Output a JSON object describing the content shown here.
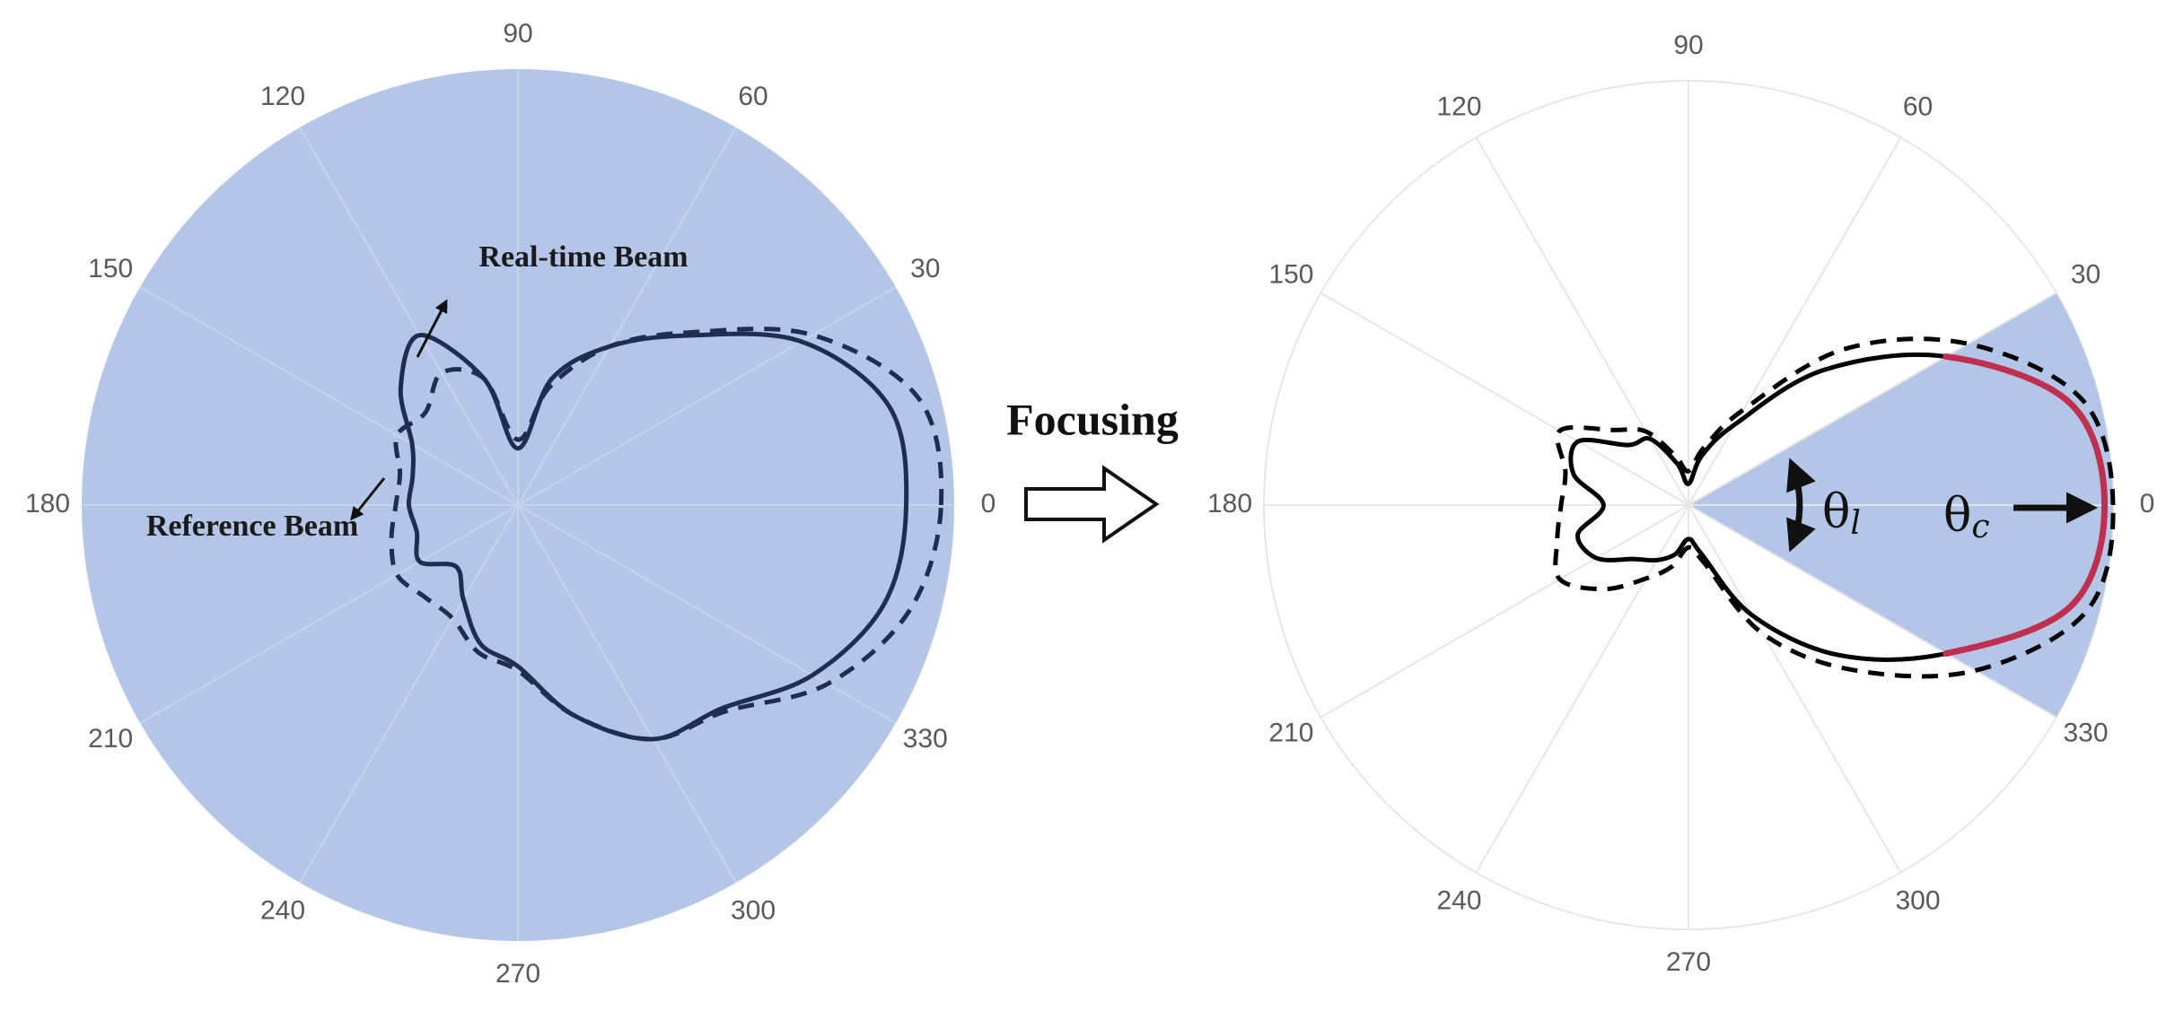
{
  "chart_data": [
    {
      "type": "polar",
      "angles": [
        0,
        15,
        30,
        45,
        60,
        75,
        90,
        105,
        120,
        135,
        150,
        165,
        180,
        195,
        210,
        225,
        240,
        255,
        270,
        285,
        300,
        315,
        330,
        345
      ],
      "rlim": [
        0,
        1
      ],
      "angle_ticks": [
        0,
        30,
        60,
        90,
        120,
        150,
        180,
        210,
        240,
        270,
        300,
        330
      ],
      "background": "#b4c6e7",
      "grid_color": "#c8d4ec",
      "series": [
        {
          "name": "Real-time Beam",
          "color": "#1f2d4e",
          "dashed": false,
          "values": [
            0.89,
            0.88,
            0.75,
            0.55,
            0.42,
            0.3,
            0.13,
            0.3,
            0.45,
            0.38,
            0.28,
            0.25,
            0.25,
            0.24,
            0.26,
            0.2,
            0.25,
            0.33,
            0.37,
            0.5,
            0.62,
            0.66,
            0.78,
            0.87
          ]
        },
        {
          "name": "Reference Beam",
          "color": "#1f2d4e",
          "dashed": true,
          "values": [
            0.97,
            0.95,
            0.78,
            0.56,
            0.42,
            0.28,
            0.15,
            0.3,
            0.35,
            0.3,
            0.32,
            0.28,
            0.28,
            0.3,
            0.32,
            0.3,
            0.3,
            0.35,
            0.38,
            0.5,
            0.62,
            0.67,
            0.82,
            0.93
          ]
        }
      ]
    },
    {
      "type": "polar",
      "angles": [
        0,
        15,
        30,
        45,
        60,
        75,
        90,
        105,
        120,
        135,
        150,
        165,
        180,
        195,
        210,
        225,
        240,
        255,
        270,
        285,
        300,
        315,
        330,
        345
      ],
      "rlim": [
        0,
        1
      ],
      "angle_ticks": [
        0,
        30,
        60,
        90,
        120,
        150,
        180,
        210,
        240,
        270,
        300,
        330
      ],
      "grid_color": "#e6e6e6",
      "highlight_range": [
        330,
        30
      ],
      "highlight_fill": "#b4c6e7",
      "highlight_color": "#c0304e",
      "series": [
        {
          "color": "#000000",
          "dashed": false,
          "values": [
            0.98,
            0.93,
            0.7,
            0.45,
            0.22,
            0.12,
            0.05,
            0.1,
            0.18,
            0.2,
            0.3,
            0.28,
            0.2,
            0.27,
            0.25,
            0.18,
            0.15,
            0.12,
            0.08,
            0.12,
            0.3,
            0.5,
            0.7,
            0.93
          ]
        },
        {
          "color": "#000000",
          "dashed": true,
          "values": [
            1.0,
            0.96,
            0.76,
            0.52,
            0.26,
            0.14,
            0.08,
            0.12,
            0.2,
            0.25,
            0.35,
            0.3,
            0.3,
            0.32,
            0.35,
            0.28,
            0.2,
            0.15,
            0.1,
            0.14,
            0.35,
            0.55,
            0.78,
            0.97
          ]
        }
      ],
      "theta_l": {
        "symbol": "θ",
        "subscript": "l"
      },
      "theta_c": {
        "symbol": "θ",
        "subscript": "c"
      }
    }
  ],
  "transition_label": "Focusing"
}
